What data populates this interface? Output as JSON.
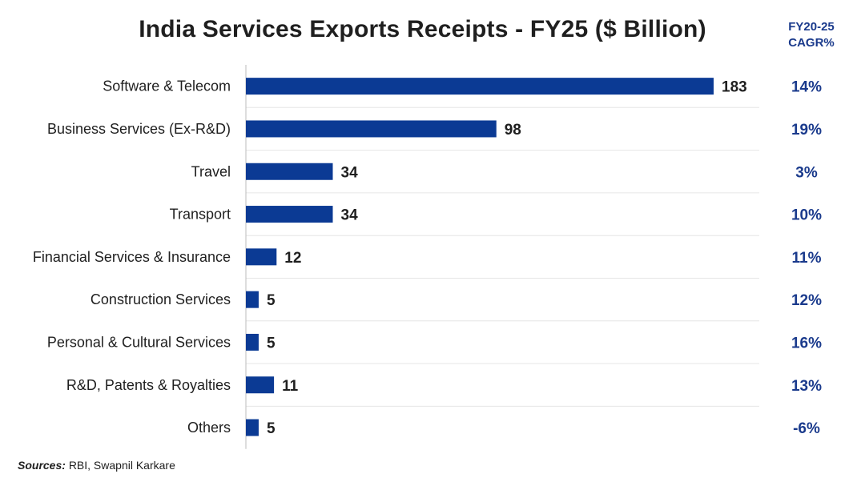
{
  "chart_data": {
    "type": "bar",
    "orientation": "horizontal",
    "title": "India Services Exports Receipts - FY25 ($ Billion)",
    "categories": [
      "Software & Telecom",
      "Business Services (Ex-R&D)",
      "Travel",
      "Transport",
      "Financial Services & Insurance",
      "Construction Services",
      "Personal & Cultural Services",
      "R&D, Patents & Royalties",
      "Others"
    ],
    "values": [
      183,
      98,
      34,
      34,
      12,
      5,
      5,
      11,
      5
    ],
    "value_labels": [
      "183",
      "98",
      "34",
      "34",
      "12",
      "5",
      "5",
      "11",
      "5"
    ],
    "xlim": [
      0,
      183
    ],
    "grid": true,
    "secondary_column": {
      "header": [
        "FY20-25",
        "CAGR%"
      ],
      "values": [
        "14%",
        "19%",
        "3%",
        "10%",
        "11%",
        "12%",
        "16%",
        "13%",
        "-6%"
      ]
    },
    "colors": {
      "bar": "#0b3a94",
      "cagr_text": "#1a3a8c",
      "grid": "#e6e6e6",
      "axis": "#bbbbbb"
    }
  },
  "footer": {
    "source_label": "Sources:",
    "source_text": "RBI, Swapnil Karkare"
  }
}
